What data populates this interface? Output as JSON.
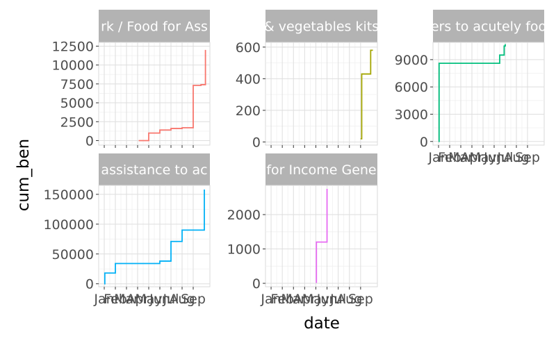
{
  "chart_data": {
    "type": "line",
    "facet_layout": "3 columns x 2 rows",
    "x_axis_label": "date",
    "y_axis_label": "cum_ben",
    "x_tick_labels": [
      "Jan",
      "Feb",
      "Mar",
      "Apr",
      "May",
      "Jun",
      "Jul",
      "Aug",
      "Sep"
    ],
    "grid": true,
    "legend": "none",
    "panels": [
      {
        "strip_label": "rk / Food for Ass",
        "color": "#F8766D",
        "y_ticks": [
          0,
          2500,
          5000,
          7500,
          10000,
          12500
        ],
        "ylim": [
          -600,
          13000
        ],
        "show_x_ticks": false,
        "x": [
          4.1,
          5.0,
          6.0,
          7.0,
          8.0,
          9.0,
          9.7,
          10.1
        ],
        "y": [
          0,
          1000,
          1400,
          1600,
          1700,
          7300,
          7400,
          12000
        ]
      },
      {
        "strip_label": "& vegetables kits",
        "color": "#A3A500",
        "y_ticks": [
          0,
          200,
          400,
          600
        ],
        "ylim": [
          -20,
          630
        ],
        "show_x_ticks": false,
        "x": [
          9.0,
          9.1,
          9.9,
          10.1
        ],
        "y": [
          20,
          430,
          580,
          580
        ]
      },
      {
        "strip_label": "ers to acutely foo",
        "color": "#00BF7D",
        "y_ticks": [
          0,
          3000,
          6000,
          9000
        ],
        "ylim": [
          -400,
          10900
        ],
        "show_x_ticks": true,
        "x": [
          1.0,
          1.05,
          5.0,
          6.0,
          6.5,
          6.9,
          7.0
        ],
        "y": [
          0,
          8600,
          8600,
          8600,
          9500,
          10500,
          10700
        ]
      },
      {
        "strip_label": "assistance to ac",
        "color": "#00B0F6",
        "y_ticks": [
          0,
          50000,
          100000,
          150000
        ],
        "ylim": [
          -5000,
          165000
        ],
        "show_x_ticks": true,
        "x": [
          1.0,
          1.05,
          2.0,
          3.0,
          6.0,
          7.0,
          8.0,
          9.0,
          10.0
        ],
        "y": [
          0,
          18000,
          34000,
          34000,
          38000,
          71000,
          90000,
          90000,
          158000
        ]
      },
      {
        "strip_label": "for Income Gene",
        "color": "#E76BF3",
        "y_ticks": [
          0,
          1000,
          2000
        ],
        "ylim": [
          -100,
          2850
        ],
        "show_x_ticks": true,
        "x": [
          5.0,
          5.05,
          6.0
        ],
        "y": [
          30,
          1200,
          2750
        ]
      }
    ]
  }
}
